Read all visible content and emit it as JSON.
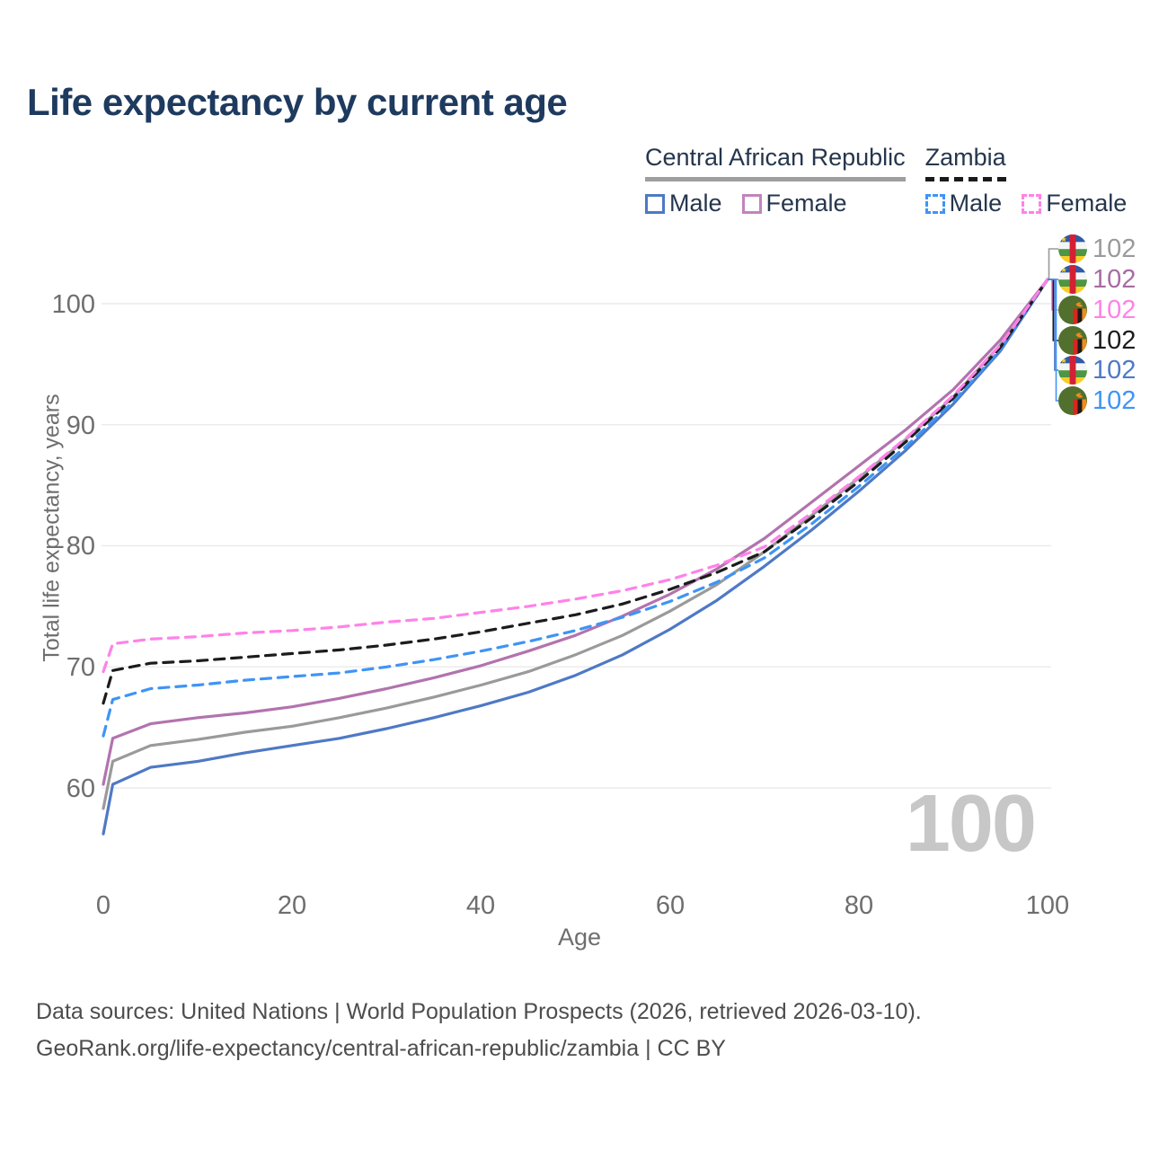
{
  "title": "Life expectancy by current age",
  "legend": {
    "groups": [
      {
        "label": "Central African Republic",
        "underline_color": "#9e9e9e",
        "underline_style": "solid",
        "items": [
          {
            "label": "Male",
            "color": "#4e79c5",
            "dashed": false
          },
          {
            "label": "Female",
            "color": "#c184bd",
            "dashed": false
          }
        ]
      },
      {
        "label": "Zambia",
        "underline_color": "#1a1a1a",
        "underline_style": "dashed",
        "items": [
          {
            "label": "Male",
            "color": "#3f94f5",
            "dashed": true
          },
          {
            "label": "Female",
            "color": "#ff82e8",
            "dashed": true
          }
        ]
      }
    ]
  },
  "chart_data": {
    "type": "line",
    "title": "Life expectancy by current age",
    "xlabel": "Age",
    "ylabel": "Total life expectancy, years",
    "xlim": [
      0,
      100
    ],
    "ylim": [
      56,
      103
    ],
    "grid": "horizontal",
    "xticks": [
      "0",
      "20",
      "40",
      "60",
      "80",
      "100"
    ],
    "yticks": [
      "100",
      "90",
      "80",
      "70",
      "60"
    ],
    "x": [
      0,
      1,
      5,
      10,
      15,
      20,
      25,
      30,
      35,
      40,
      45,
      50,
      55,
      60,
      65,
      70,
      75,
      80,
      85,
      90,
      95,
      100
    ],
    "series": [
      {
        "id": "car-male",
        "name": "Central African Republic Male",
        "color": "#4e79c5",
        "dashed": false,
        "values": [
          56.2,
          60.3,
          61.7,
          62.2,
          62.9,
          63.5,
          64.1,
          64.9,
          65.8,
          66.8,
          67.9,
          69.3,
          71.0,
          73.1,
          75.5,
          78.3,
          81.3,
          84.5,
          87.9,
          91.7,
          96.1,
          102
        ]
      },
      {
        "id": "car-both",
        "name": "Central African Republic Both sexes",
        "color": "#9a9a9a",
        "dashed": false,
        "values": [
          58.3,
          62.2,
          63.5,
          64.0,
          64.6,
          65.1,
          65.8,
          66.6,
          67.5,
          68.5,
          69.6,
          71.0,
          72.6,
          74.6,
          76.8,
          79.5,
          82.5,
          85.6,
          88.8,
          92.3,
          96.6,
          102
        ]
      },
      {
        "id": "car-female",
        "name": "Central African Republic Female",
        "color": "#b273ae",
        "dashed": false,
        "values": [
          60.3,
          64.1,
          65.3,
          65.8,
          66.2,
          66.7,
          67.4,
          68.2,
          69.1,
          70.1,
          71.3,
          72.6,
          74.2,
          76.0,
          78.1,
          80.6,
          83.6,
          86.6,
          89.6,
          92.9,
          97.0,
          102
        ]
      },
      {
        "id": "zambia-male",
        "name": "Zambia Male",
        "color": "#3f94f5",
        "dashed": true,
        "values": [
          64.3,
          67.3,
          68.2,
          68.5,
          68.9,
          69.2,
          69.5,
          70.0,
          70.6,
          71.3,
          72.1,
          73.0,
          74.1,
          75.4,
          77.0,
          79.0,
          81.8,
          84.9,
          88.2,
          91.9,
          96.2,
          102
        ]
      },
      {
        "id": "zambia-both",
        "name": "Zambia Both sexes",
        "color": "#1c1c1c",
        "dashed": true,
        "values": [
          67.0,
          69.7,
          70.3,
          70.5,
          70.8,
          71.1,
          71.4,
          71.8,
          72.3,
          72.9,
          73.6,
          74.3,
          75.2,
          76.4,
          77.8,
          79.5,
          82.3,
          85.3,
          88.6,
          92.2,
          96.4,
          102
        ]
      },
      {
        "id": "zambia-female",
        "name": "Zambia Female",
        "color": "#ff82e8",
        "dashed": true,
        "values": [
          69.6,
          71.9,
          72.3,
          72.5,
          72.8,
          73.0,
          73.3,
          73.7,
          74.0,
          74.5,
          75.0,
          75.6,
          76.3,
          77.2,
          78.4,
          79.9,
          82.7,
          85.7,
          88.9,
          92.4,
          96.6,
          102
        ]
      }
    ],
    "end_labels": [
      {
        "flag": "central-african-republic",
        "value": "102",
        "color": "#9a9a9a"
      },
      {
        "flag": "central-african-republic",
        "value": "102",
        "color": "#a86ba2"
      },
      {
        "flag": "zambia",
        "value": "102",
        "color": "#ff82e8"
      },
      {
        "flag": "zambia",
        "value": "102",
        "color": "#1c1c1c"
      },
      {
        "flag": "central-african-republic",
        "value": "102",
        "color": "#4e79c5"
      },
      {
        "flag": "zambia",
        "value": "102",
        "color": "#3f94f5"
      }
    ],
    "age_indicator": "100",
    "legend_position": "top-right"
  },
  "footer": {
    "line1": "Data sources: United Nations | World Population Prospects (2026, retrieved 2026-03-10).",
    "line2": "GeoRank.org/life-expectancy/central-african-republic/zambia | CC BY"
  }
}
